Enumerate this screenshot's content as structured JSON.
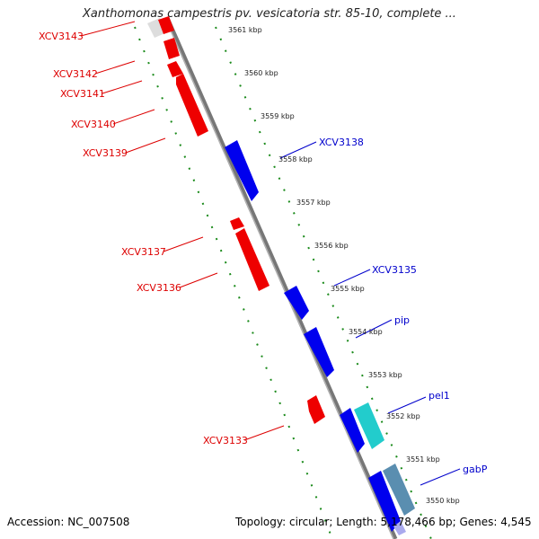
{
  "title": "Xanthomonas campestris pv. vesicatoria str. 85-10, complete ...",
  "accession": "Accession: NC_007508",
  "summary": "Topology: circular; Length: 5,178,466 bp; Genes: 4,545",
  "colors": {
    "forward_gene": "#0000ee",
    "reverse_gene": "#ee0000",
    "cyan_gene": "#22cccc",
    "steel_gene": "#5a8eb0",
    "backbone": "#888888",
    "tick_ring": "#1a8a1a",
    "forward_label": "#0000cc",
    "reverse_label": "#dd0000"
  },
  "ticks": [
    "3561 kbp",
    "3560 kbp",
    "3559 kbp",
    "3558 kbp",
    "3557 kbp",
    "3556 kbp",
    "3555 kbp",
    "3554 kbp",
    "3553 kbp",
    "3552 kbp",
    "3551 kbp",
    "3550 kbp"
  ],
  "reverse_labels": [
    "XCV3143",
    "XCV3142",
    "XCV3141",
    "XCV3140",
    "XCV3139",
    "XCV3137",
    "XCV3136",
    "XCV3133"
  ],
  "forward_labels": [
    "XCV3138",
    "XCV3135",
    "pip",
    "pel1",
    "gabP"
  ]
}
